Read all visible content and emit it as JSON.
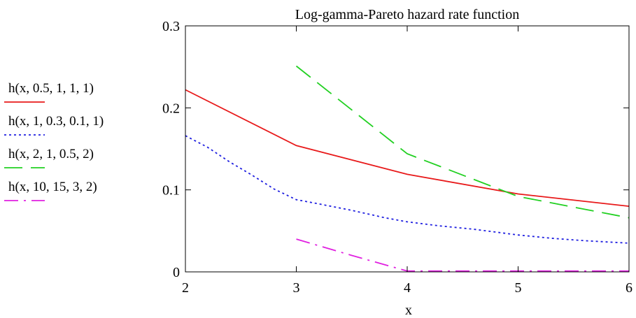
{
  "chart_data": {
    "type": "line",
    "title": "Log-gamma-Pareto hazard rate function",
    "xlabel": "x",
    "ylabel": "",
    "xlim": [
      2,
      6
    ],
    "ylim": [
      0,
      0.3
    ],
    "xticks": [
      2,
      3,
      4,
      5,
      6
    ],
    "yticks": [
      0,
      0.1,
      0.2,
      0.3
    ],
    "xtick_labels": [
      "2",
      "3",
      "4",
      "5",
      "6"
    ],
    "ytick_labels": [
      "0",
      "0.1",
      "0.2",
      "0.3"
    ],
    "grid": false,
    "legend_position": "left",
    "series": [
      {
        "name": "h(x, 0.5, 1, 1, 1)",
        "color": "#e8191a",
        "dash": "solid",
        "x": [
          2,
          3,
          4,
          5,
          6
        ],
        "y": [
          0.222,
          0.154,
          0.119,
          0.095,
          0.08
        ]
      },
      {
        "name": "h(x, 1, 0.3, 0.1, 1)",
        "color": "#1f1fe0",
        "dash": "dotted",
        "x": [
          2,
          2.2,
          2.4,
          2.6,
          2.8,
          3,
          3.2,
          3.5,
          3.8,
          4,
          4.3,
          4.6,
          5,
          5.3,
          5.6,
          6
        ],
        "y": [
          0.166,
          0.152,
          0.134,
          0.118,
          0.101,
          0.088,
          0.083,
          0.075,
          0.066,
          0.061,
          0.056,
          0.052,
          0.045,
          0.041,
          0.038,
          0.035
        ]
      },
      {
        "name": "h(x, 2, 1, 0.5, 2)",
        "color": "#22d022",
        "dash": "dashed",
        "x": [
          3,
          4,
          5,
          6
        ],
        "y": [
          0.251,
          0.144,
          0.092,
          0.066
        ]
      },
      {
        "name": "h(x, 10, 15, 3, 2)",
        "color": "#e020e0",
        "dash": "dashdot",
        "x": [
          3,
          3.5,
          4,
          4.5,
          5,
          5.5,
          6
        ],
        "y": [
          0.04,
          0.02,
          0.001,
          0.001,
          0.001,
          0.001,
          0.001
        ]
      }
    ]
  }
}
